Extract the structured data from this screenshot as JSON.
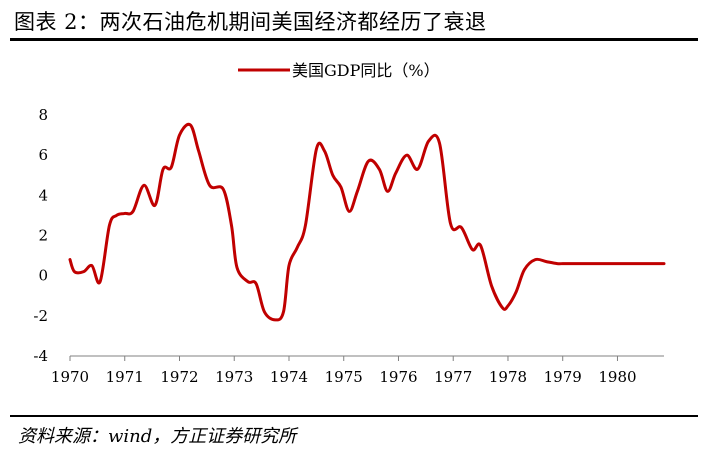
{
  "header": {
    "title": "图表 2：两次石油危机期间美国经济都经历了衰退"
  },
  "footer": {
    "source": "资料来源：wind，方正证券研究所"
  },
  "colors": {
    "series": "#c00000",
    "text": "#000000"
  },
  "chart_data": {
    "type": "line",
    "title": "",
    "xlabel": "",
    "ylabel": "",
    "legend_position": "top-center",
    "grid": false,
    "xlim": [
      1970,
      1980.85
    ],
    "ylim": [
      -4,
      8
    ],
    "x_ticks": [
      "1970",
      "1971",
      "1972",
      "1973",
      "1974",
      "1975",
      "1976",
      "1977",
      "1978",
      "1979",
      "1980"
    ],
    "y_ticks": [
      "8",
      "6",
      "4",
      "2",
      "0",
      "-2",
      "-4"
    ],
    "series": [
      {
        "name": "美国GDP同比（%）",
        "color": "#c00000",
        "x": [
          1970.0,
          1970.08,
          1970.25,
          1970.4,
          1970.55,
          1970.72,
          1970.85,
          1971.0,
          1971.15,
          1971.35,
          1971.55,
          1971.7,
          1971.85,
          1972.0,
          1972.2,
          1972.35,
          1972.55,
          1972.8,
          1972.95,
          1973.05,
          1973.25,
          1973.4,
          1973.55,
          1973.75,
          1973.9,
          1974.0,
          1974.15,
          1974.3,
          1974.5,
          1974.65,
          1974.8,
          1974.95,
          1975.1,
          1975.25,
          1975.45,
          1975.65,
          1975.8,
          1975.95,
          1976.15,
          1976.35,
          1976.55,
          1976.75,
          1976.95,
          1977.15,
          1977.35,
          1977.5,
          1977.7,
          1977.9,
          1978.0,
          1978.15,
          1978.3,
          1978.5,
          1978.7,
          1978.9,
          1979.0,
          1979.1,
          1979.2,
          1979.4,
          1979.6,
          1979.75,
          1979.9,
          1980.1,
          1980.3,
          1980.45,
          1980.6,
          1980.85
        ],
        "values": [
          0.8,
          0.2,
          0.2,
          0.5,
          -0.3,
          2.5,
          3.0,
          3.1,
          3.2,
          4.5,
          3.5,
          5.3,
          5.4,
          7.0,
          7.5,
          6.2,
          4.5,
          4.3,
          2.5,
          0.4,
          -0.3,
          -0.4,
          -1.8,
          -2.2,
          -1.8,
          0.5,
          1.4,
          2.5,
          6.3,
          6.2,
          5.0,
          4.4,
          3.2,
          4.2,
          5.7,
          5.3,
          4.2,
          5.1,
          6.0,
          5.3,
          6.7,
          6.6,
          2.6,
          2.4,
          1.3,
          1.5,
          -0.5,
          -1.6,
          -1.5,
          -0.8,
          0.3,
          0.8,
          0.7,
          0.6,
          0.6,
          0.6,
          0.6,
          0.6,
          0.6,
          0.6,
          0.6,
          0.6,
          0.6,
          0.6,
          0.6,
          0.6
        ]
      }
    ]
  }
}
